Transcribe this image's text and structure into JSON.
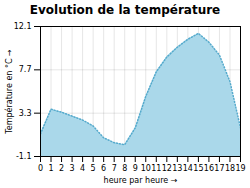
{
  "chart_data": {
    "type": "area",
    "title": "Evolution de la température",
    "xlabel": "heure par heure",
    "ylabel": "Température en °C",
    "x": [
      0,
      1,
      2,
      3,
      4,
      5,
      6,
      7,
      8,
      9,
      10,
      11,
      12,
      13,
      14,
      15,
      16,
      17,
      18,
      19
    ],
    "series": [
      {
        "type": "area",
        "color": "#aad8ea",
        "values": [
          1.2,
          3.7,
          3.4,
          3.0,
          2.6,
          2.0,
          0.8,
          0.3,
          0.1,
          1.8,
          5.0,
          7.5,
          9.0,
          10.0,
          10.8,
          11.4,
          10.5,
          9.2,
          6.5,
          1.8
        ]
      },
      {
        "type": "line",
        "color": "#55aacc",
        "line_style": "dotted",
        "values": [
          1.2,
          3.7,
          3.4,
          3.0,
          2.6,
          2.0,
          0.8,
          0.3,
          0.1,
          1.8,
          5.0,
          7.5,
          9.0,
          10.0,
          10.8,
          11.4,
          10.5,
          9.2,
          6.5,
          1.8
        ]
      }
    ],
    "xlim": [
      0,
      19
    ],
    "ylim": [
      -1.1,
      12.1
    ],
    "xticks": [
      0,
      1,
      2,
      3,
      4,
      5,
      6,
      7,
      8,
      9,
      10,
      11,
      12,
      13,
      14,
      15,
      16,
      17,
      18,
      19
    ],
    "yticks": [
      -1.1,
      3.3,
      7.7,
      12.1
    ],
    "grid": true
  }
}
